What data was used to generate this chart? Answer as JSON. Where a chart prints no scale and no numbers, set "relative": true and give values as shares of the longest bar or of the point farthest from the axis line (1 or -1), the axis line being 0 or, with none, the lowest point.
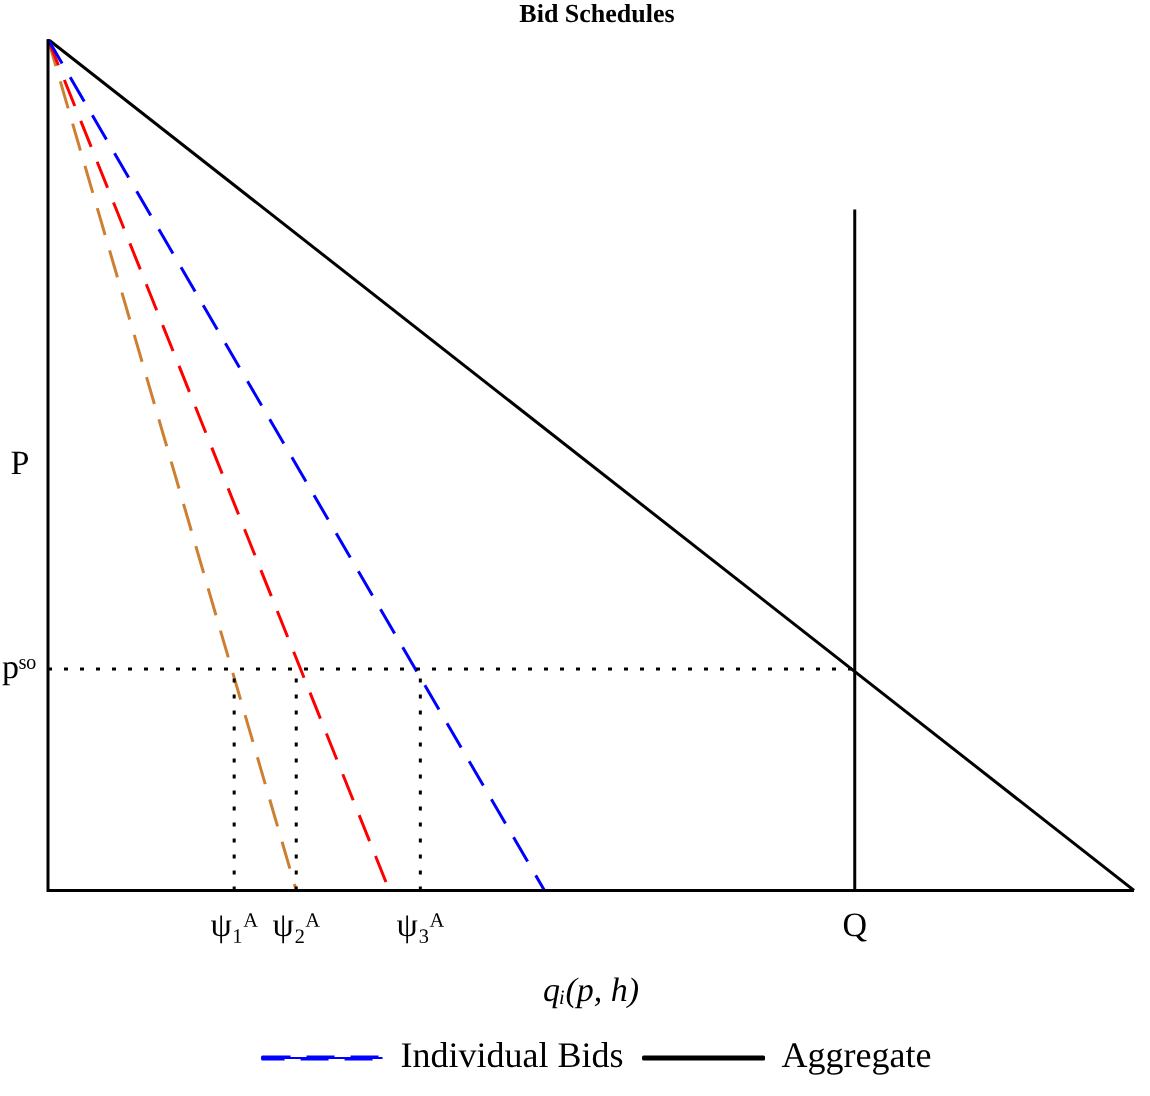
{
  "chart_data": {
    "type": "line",
    "title": "Bid Schedules",
    "xlabel": "qᵢ(p, h)",
    "ylabel": "P",
    "relative": true,
    "categories": [
      null,
      null,
      null,
      null,
      null,
      null,
      "ψ₁ᴬ",
      null,
      "ψ₂ᴬ",
      null,
      null,
      null,
      "ψ₃ᴬ",
      null,
      null,
      null,
      null,
      null,
      null,
      null,
      null,
      null,
      null,
      null,
      null,
      null,
      "Q",
      null,
      null,
      null,
      null,
      null,
      null,
      null,
      null,
      null
    ],
    "legend": "bottom",
    "marker": "none",
    "ref_lines": [
      {
        "axis": "y",
        "value": 0.26,
        "label": "pˢᵒ",
        "line_style": "dotted",
        "color": "#000000"
      },
      {
        "axis": "x",
        "value": "ψ₁ᴬ",
        "line_style": "dotted",
        "color": "#000000"
      },
      {
        "axis": "x",
        "value": "ψ₂ᴬ",
        "line_style": "dotted",
        "color": "#000000"
      },
      {
        "axis": "x",
        "value": "ψ₃ᴬ",
        "line_style": "dotted",
        "color": "#000000"
      },
      {
        "axis": "x",
        "value": "Q",
        "line_style": "solid",
        "color": "#000000"
      }
    ],
    "series": [
      {
        "name": "Individual Bids",
        "color": "#0000ff",
        "line_style": "dashed",
        "values": [
          1,
          null,
          null,
          null,
          null,
          null,
          null,
          null,
          null,
          null,
          null,
          null,
          null,
          null,
          null,
          null,
          0,
          null,
          null,
          null,
          null,
          null,
          null,
          null,
          null,
          null,
          null,
          null,
          null,
          null,
          null,
          null,
          null,
          null,
          null,
          null
        ]
      },
      {
        "color": "#ff0000",
        "line_style": "dashed",
        "values": [
          1,
          null,
          null,
          null,
          null,
          null,
          null,
          null,
          null,
          null,
          null,
          0,
          null,
          null,
          null,
          null,
          null,
          null,
          null,
          null,
          null,
          null,
          null,
          null,
          null,
          null,
          null,
          null,
          null,
          null,
          null,
          null,
          null,
          null,
          null,
          null
        ]
      },
      {
        "color": "#cd7f32",
        "line_style": "dashed",
        "values": [
          1,
          null,
          null,
          null,
          null,
          null,
          null,
          null,
          0,
          null,
          null,
          null,
          null,
          null,
          null,
          null,
          null,
          null,
          null,
          null,
          null,
          null,
          null,
          null,
          null,
          null,
          null,
          null,
          null,
          null,
          null,
          null,
          null,
          null,
          null,
          null
        ]
      },
      {
        "name": "Aggregate",
        "color": "#000000",
        "line_style": "solid",
        "values": [
          1,
          null,
          null,
          null,
          null,
          null,
          null,
          null,
          null,
          null,
          null,
          null,
          null,
          null,
          null,
          null,
          null,
          null,
          null,
          null,
          null,
          null,
          null,
          null,
          null,
          null,
          null,
          null,
          null,
          null,
          null,
          null,
          null,
          null,
          null,
          0
        ]
      }
    ]
  }
}
